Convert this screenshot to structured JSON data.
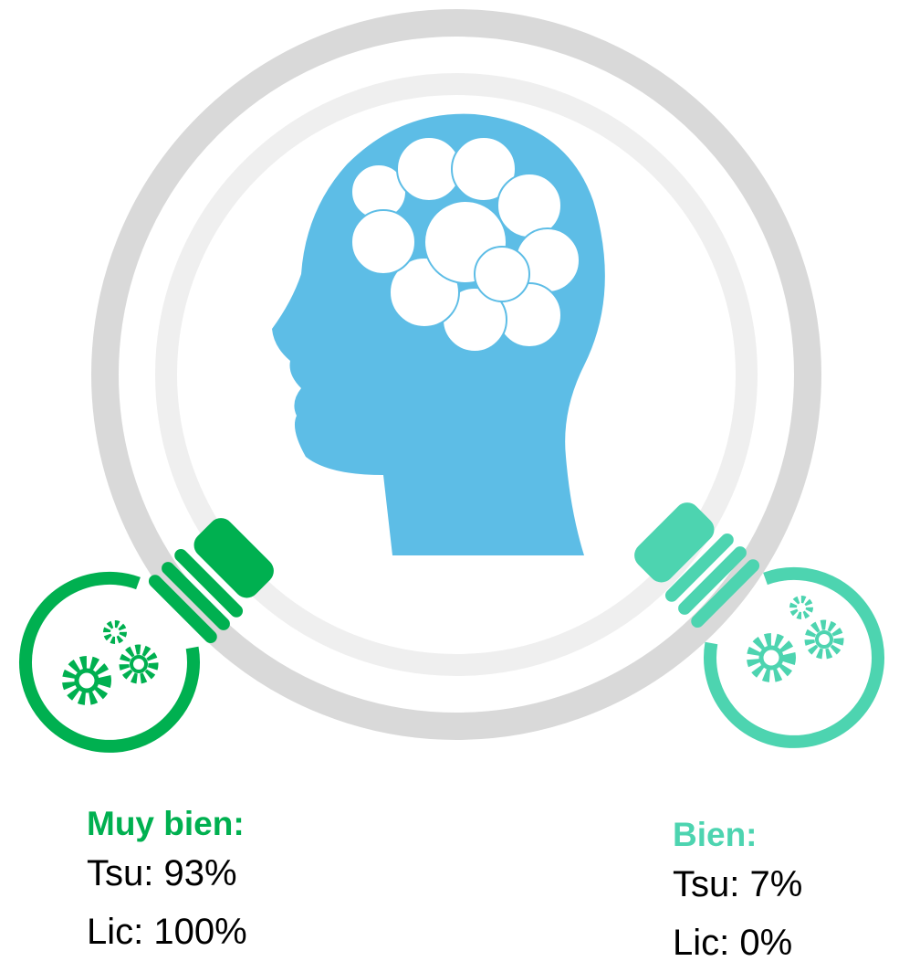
{
  "items": [
    {
      "heading": "Muy bien:",
      "lines": [
        "Tsu: 93%",
        "Lic: 100%"
      ],
      "color": "#00b050"
    },
    {
      "heading": "Bien:",
      "lines": [
        "Tsu: 7%",
        "Lic: 0%"
      ],
      "color": "#4dd4b0"
    }
  ]
}
